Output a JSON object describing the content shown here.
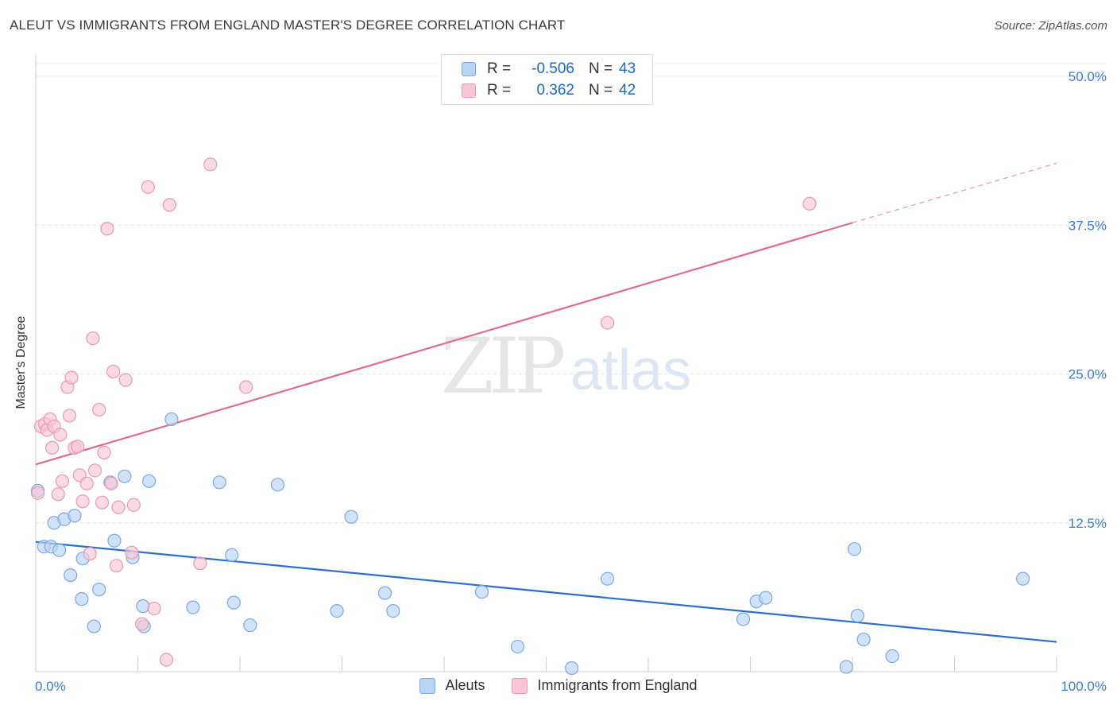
{
  "title": "ALEUT VS IMMIGRANTS FROM ENGLAND MASTER'S DEGREE CORRELATION CHART",
  "source": "Source: ZipAtlas.com",
  "watermark": {
    "zip": "ZIP",
    "atlas": "atlas"
  },
  "legend": {
    "rows": [
      {
        "r_label": "R =",
        "r_value": "-0.506",
        "n_label": "N =",
        "n_value": "43"
      },
      {
        "r_label": "R =",
        "r_value": "0.362",
        "n_label": "N =",
        "n_value": "42"
      }
    ]
  },
  "bottom_legend": {
    "series1": "Aleuts",
    "series2": "Immigrants from England"
  },
  "colors": {
    "blue_fill": "#b8d4f5",
    "blue_stroke": "#7aaae6",
    "blue_line": "#2a70d0",
    "pink_fill": "#f8c6d6",
    "pink_stroke": "#ee97b2",
    "pink_line": "#e06a93",
    "tick_label": "#3b7dd8",
    "grid": "#e2e2e2"
  },
  "chart_data": {
    "type": "scatter",
    "title": "ALEUT VS IMMIGRANTS FROM ENGLAND MASTER'S DEGREE CORRELATION CHART",
    "xlabel": "",
    "ylabel": "Master's Degree",
    "xlim": [
      0,
      100
    ],
    "ylim": [
      0,
      50
    ],
    "x_ticks": [
      "0.0%",
      "100.0%"
    ],
    "y_ticks": [
      {
        "value": 12.5,
        "label": "12.5%"
      },
      {
        "value": 25.0,
        "label": "25.0%"
      },
      {
        "value": 37.5,
        "label": "37.5%"
      },
      {
        "value": 50.0,
        "label": "50.0%"
      }
    ],
    "grid": true,
    "legend_position": "top-center",
    "series": [
      {
        "name": "Aleuts",
        "color": "blue",
        "points": [
          [
            0.2,
            15.2
          ],
          [
            0.8,
            10.5
          ],
          [
            1.5,
            10.5
          ],
          [
            1.8,
            12.5
          ],
          [
            2.3,
            10.2
          ],
          [
            2.8,
            12.8
          ],
          [
            3.4,
            8.1
          ],
          [
            3.8,
            13.1
          ],
          [
            4.5,
            6.1
          ],
          [
            4.6,
            9.5
          ],
          [
            5.7,
            3.8
          ],
          [
            6.2,
            6.9
          ],
          [
            7.3,
            15.9
          ],
          [
            7.7,
            11.0
          ],
          [
            8.7,
            16.4
          ],
          [
            9.5,
            9.6
          ],
          [
            10.5,
            5.5
          ],
          [
            10.6,
            3.8
          ],
          [
            11.1,
            16.0
          ],
          [
            13.3,
            21.2
          ],
          [
            15.4,
            5.4
          ],
          [
            18.0,
            15.9
          ],
          [
            19.2,
            9.8
          ],
          [
            19.4,
            5.8
          ],
          [
            21.0,
            3.9
          ],
          [
            23.7,
            15.7
          ],
          [
            29.5,
            5.1
          ],
          [
            30.9,
            13.0
          ],
          [
            34.2,
            6.6
          ],
          [
            35.0,
            5.1
          ],
          [
            43.7,
            6.7
          ],
          [
            47.2,
            2.1
          ],
          [
            52.5,
            0.3
          ],
          [
            56.0,
            7.8
          ],
          [
            69.3,
            4.4
          ],
          [
            70.6,
            5.9
          ],
          [
            71.5,
            6.2
          ],
          [
            79.4,
            0.4
          ],
          [
            80.2,
            10.3
          ],
          [
            80.5,
            4.7
          ],
          [
            81.1,
            2.7
          ],
          [
            83.9,
            1.3
          ],
          [
            96.7,
            7.8
          ]
        ]
      },
      {
        "name": "Immigrants from England",
        "color": "pink",
        "points": [
          [
            0.2,
            15.0
          ],
          [
            0.5,
            20.6
          ],
          [
            0.9,
            20.8
          ],
          [
            1.1,
            20.3
          ],
          [
            1.4,
            21.2
          ],
          [
            1.6,
            18.8
          ],
          [
            1.8,
            20.6
          ],
          [
            2.2,
            14.9
          ],
          [
            2.4,
            19.9
          ],
          [
            2.6,
            16.0
          ],
          [
            3.1,
            23.9
          ],
          [
            3.3,
            21.5
          ],
          [
            3.5,
            24.7
          ],
          [
            3.8,
            18.8
          ],
          [
            4.1,
            18.9
          ],
          [
            4.3,
            16.5
          ],
          [
            4.6,
            14.3
          ],
          [
            5.0,
            15.8
          ],
          [
            5.3,
            9.9
          ],
          [
            5.6,
            28.0
          ],
          [
            5.8,
            16.9
          ],
          [
            6.2,
            22.0
          ],
          [
            6.5,
            14.2
          ],
          [
            6.7,
            18.4
          ],
          [
            7.0,
            37.2
          ],
          [
            7.4,
            15.8
          ],
          [
            7.6,
            25.2
          ],
          [
            7.9,
            8.9
          ],
          [
            8.1,
            13.8
          ],
          [
            8.8,
            24.5
          ],
          [
            9.4,
            10.0
          ],
          [
            9.6,
            14.0
          ],
          [
            10.4,
            4.0
          ],
          [
            11.0,
            40.7
          ],
          [
            11.6,
            5.3
          ],
          [
            12.8,
            1.0
          ],
          [
            13.1,
            39.2
          ],
          [
            16.1,
            9.1
          ],
          [
            17.1,
            42.6
          ],
          [
            20.6,
            23.9
          ],
          [
            56.0,
            29.3
          ],
          [
            75.8,
            39.3
          ]
        ]
      }
    ],
    "trendlines": [
      {
        "series": "Aleuts",
        "x_start": 0,
        "y_start": 10.9,
        "x_end": 100,
        "y_end": 2.5,
        "style": "solid"
      },
      {
        "series": "Immigrants from England",
        "x_start": 0,
        "y_start": 17.4,
        "x_end": 80,
        "y_end": 37.7,
        "style": "solid",
        "dashed_to_x": 100,
        "dashed_to_y": 42.7
      }
    ]
  }
}
